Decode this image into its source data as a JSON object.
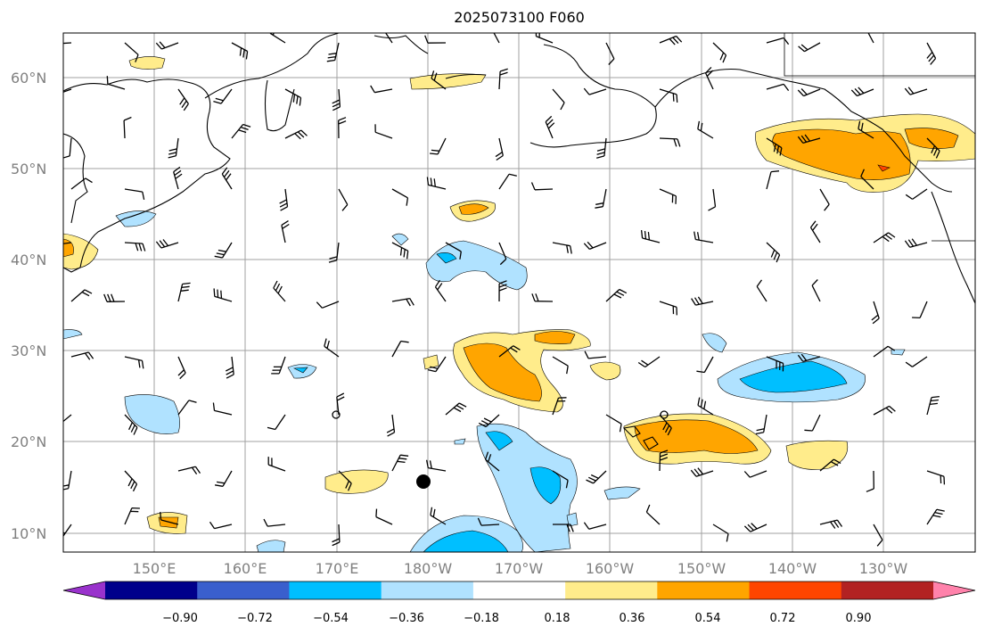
{
  "title": "2025073100 F060",
  "lat_labels": [
    "60°N",
    "50°N",
    "40°N",
    "30°N",
    "20°N",
    "10°N"
  ],
  "lon_labels": [
    "150°E",
    "160°E",
    "170°E",
    "180°W",
    "170°W",
    "160°W",
    "150°W",
    "140°W",
    "130°W"
  ],
  "colorbar": {
    "colors": [
      "#9932cc",
      "#00008b",
      "#3a5fcd",
      "#00bfff",
      "#b0e2ff",
      "#ffffff",
      "#ffec8b",
      "#ffa500",
      "#ff4500",
      "#b22222",
      "#ff82ab"
    ],
    "labels": [
      "−0.90",
      "−0.72",
      "−0.54",
      "−0.36",
      "−0.18",
      "0.18",
      "0.36",
      "0.54",
      "0.72",
      "0.90"
    ]
  }
}
